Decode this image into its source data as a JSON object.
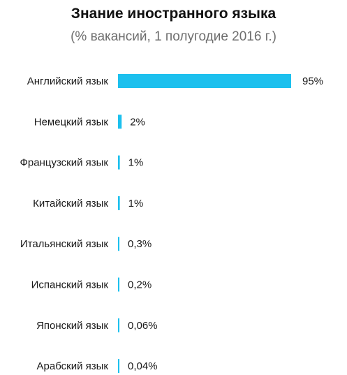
{
  "chart_data": {
    "type": "bar",
    "orientation": "horizontal",
    "title": "Знание иностранного языка",
    "subtitle": "(% вакансий, 1 полугодие 2016 г.)",
    "categories": [
      "Английский язык",
      "Немецкий язык",
      "Французский язык",
      "Китайский язык",
      "Итальянский язык",
      "Испанский язык",
      "Японский язык",
      "Арабский язык"
    ],
    "values": [
      95,
      2,
      1,
      1,
      0.3,
      0.2,
      0.06,
      0.04
    ],
    "value_labels": [
      "95%",
      "2%",
      "1%",
      "1%",
      "0,3%",
      "0,2%",
      "0,06%",
      "0,04%"
    ],
    "xlim": [
      0,
      95
    ],
    "bar_color": "#1cc0ee",
    "grid": false,
    "legend": "none"
  }
}
